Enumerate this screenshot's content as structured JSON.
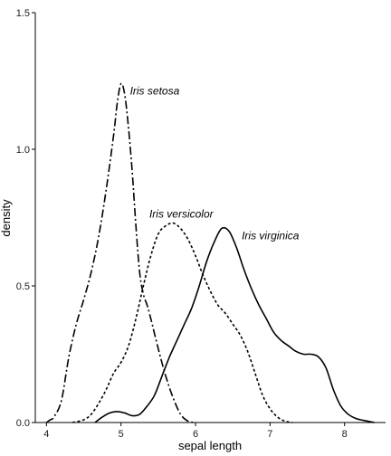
{
  "chart_data": {
    "type": "line",
    "xlabel": "sepal length",
    "ylabel": "density",
    "xlim": [
      3.85,
      8.55
    ],
    "ylim": [
      0,
      1.5
    ],
    "xticks": [
      4,
      5,
      6,
      7,
      8
    ],
    "yticks": [
      0.0,
      0.5,
      1.0,
      1.5
    ],
    "ytick_labels": [
      "0.0",
      "0.5",
      "1.0",
      "1.5"
    ],
    "grid": false,
    "legend": "none (direct labels)",
    "series": [
      {
        "name": "Iris setosa",
        "line_style": "dashdot",
        "label_anchor": [
          5.12,
          1.2
        ],
        "points": [
          [
            4.0,
            0.0
          ],
          [
            4.05,
            0.01
          ],
          [
            4.1,
            0.02
          ],
          [
            4.2,
            0.08
          ],
          [
            4.3,
            0.24
          ],
          [
            4.4,
            0.36
          ],
          [
            4.5,
            0.45
          ],
          [
            4.6,
            0.55
          ],
          [
            4.7,
            0.68
          ],
          [
            4.8,
            0.85
          ],
          [
            4.9,
            1.05
          ],
          [
            4.95,
            1.17
          ],
          [
            5.0,
            1.24
          ],
          [
            5.05,
            1.2
          ],
          [
            5.1,
            1.08
          ],
          [
            5.15,
            0.92
          ],
          [
            5.2,
            0.72
          ],
          [
            5.25,
            0.55
          ],
          [
            5.3,
            0.47
          ],
          [
            5.35,
            0.43
          ],
          [
            5.4,
            0.38
          ],
          [
            5.5,
            0.27
          ],
          [
            5.6,
            0.17
          ],
          [
            5.7,
            0.09
          ],
          [
            5.8,
            0.03
          ],
          [
            5.9,
            0.005
          ],
          [
            6.0,
            0.0
          ]
        ]
      },
      {
        "name": "Iris versicolor",
        "line_style": "dotted",
        "label_anchor": [
          5.38,
          0.75
        ],
        "points": [
          [
            4.35,
            0.0
          ],
          [
            4.5,
            0.01
          ],
          [
            4.6,
            0.03
          ],
          [
            4.7,
            0.07
          ],
          [
            4.8,
            0.12
          ],
          [
            4.9,
            0.18
          ],
          [
            5.0,
            0.22
          ],
          [
            5.1,
            0.28
          ],
          [
            5.2,
            0.38
          ],
          [
            5.3,
            0.5
          ],
          [
            5.4,
            0.61
          ],
          [
            5.5,
            0.69
          ],
          [
            5.6,
            0.72
          ],
          [
            5.7,
            0.73
          ],
          [
            5.8,
            0.71
          ],
          [
            5.9,
            0.67
          ],
          [
            6.0,
            0.61
          ],
          [
            6.1,
            0.54
          ],
          [
            6.2,
            0.48
          ],
          [
            6.3,
            0.43
          ],
          [
            6.4,
            0.4
          ],
          [
            6.5,
            0.36
          ],
          [
            6.6,
            0.32
          ],
          [
            6.7,
            0.26
          ],
          [
            6.8,
            0.18
          ],
          [
            6.9,
            0.1
          ],
          [
            7.0,
            0.05
          ],
          [
            7.1,
            0.02
          ],
          [
            7.2,
            0.005
          ],
          [
            7.3,
            0.0
          ]
        ]
      },
      {
        "name": "Iris virginica",
        "line_style": "solid",
        "label_anchor": [
          6.62,
          0.67
        ],
        "points": [
          [
            4.65,
            0.0
          ],
          [
            4.75,
            0.02
          ],
          [
            4.85,
            0.035
          ],
          [
            4.95,
            0.04
          ],
          [
            5.05,
            0.035
          ],
          [
            5.15,
            0.025
          ],
          [
            5.25,
            0.03
          ],
          [
            5.35,
            0.06
          ],
          [
            5.45,
            0.1
          ],
          [
            5.55,
            0.17
          ],
          [
            5.65,
            0.24
          ],
          [
            5.75,
            0.3
          ],
          [
            5.85,
            0.36
          ],
          [
            5.95,
            0.42
          ],
          [
            6.05,
            0.5
          ],
          [
            6.15,
            0.59
          ],
          [
            6.25,
            0.66
          ],
          [
            6.35,
            0.71
          ],
          [
            6.45,
            0.7
          ],
          [
            6.55,
            0.64
          ],
          [
            6.65,
            0.56
          ],
          [
            6.75,
            0.49
          ],
          [
            6.85,
            0.43
          ],
          [
            6.95,
            0.38
          ],
          [
            7.05,
            0.33
          ],
          [
            7.15,
            0.3
          ],
          [
            7.25,
            0.28
          ],
          [
            7.35,
            0.26
          ],
          [
            7.45,
            0.25
          ],
          [
            7.55,
            0.25
          ],
          [
            7.65,
            0.24
          ],
          [
            7.75,
            0.2
          ],
          [
            7.85,
            0.12
          ],
          [
            7.95,
            0.06
          ],
          [
            8.05,
            0.03
          ],
          [
            8.15,
            0.015
          ],
          [
            8.25,
            0.008
          ],
          [
            8.4,
            0.0
          ]
        ]
      }
    ]
  }
}
